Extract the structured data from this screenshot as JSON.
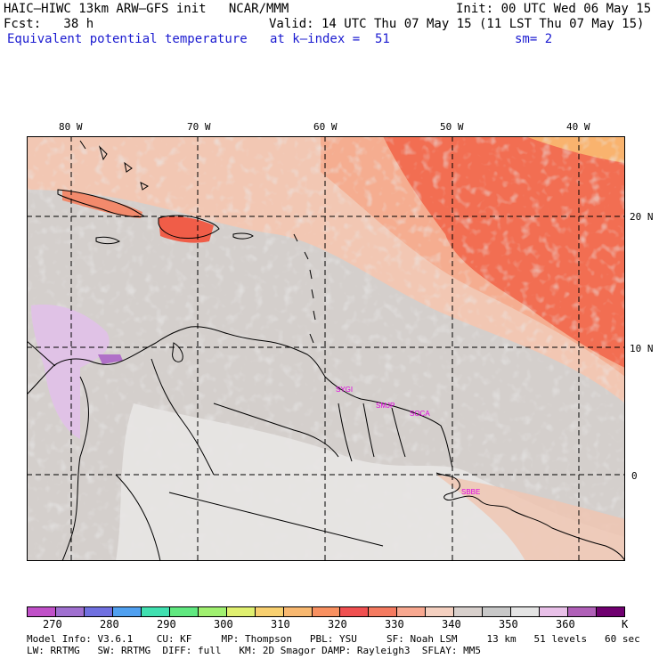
{
  "header": {
    "model_line": "HAIC–HIWC 13km ARW–GFS init   NCAR/MMM",
    "init_line": "Init: 00 UTC Wed 06 May 15",
    "fcst_line": "Fcst:   38 h",
    "valid_line": "Valid: 14 UTC Thu 07 May 15 (11 LST Thu 07 May 15)",
    "field_name": "Equivalent potential temperature",
    "level": "at k–index =  51",
    "smoothing": "sm= 2"
  },
  "map": {
    "longitude_labels": [
      "80 W",
      "70 W",
      "60 W",
      "50 W",
      "40 W"
    ],
    "latitude_labels": [
      "20 N",
      "10 N",
      "0"
    ],
    "stations": [
      "SYGI",
      "SMJP",
      "SOCA",
      "SBBE"
    ],
    "colors": {
      "background": "#cfcfcf",
      "warm_band": "#f5b89a",
      "hot": "#f26b50",
      "hottest": "#f59a6a",
      "light": "#e8e8e8",
      "lavender": "#e0bfe6",
      "purple": "#b070c8",
      "station_text": "#e000e0"
    }
  },
  "colorbar": {
    "labels": [
      "270",
      "280",
      "290",
      "300",
      "310",
      "320",
      "330",
      "340",
      "350",
      "360"
    ],
    "unit": "K",
    "colors": [
      "#c050c8",
      "#a070d0",
      "#7070e0",
      "#50a0f0",
      "#40e0b0",
      "#60e880",
      "#a0f070",
      "#e0f070",
      "#f8d070",
      "#f8b870",
      "#f89060",
      "#f05050",
      "#f47a60",
      "#f8a890",
      "#f4d0c0",
      "#d8d0cc",
      "#c8c8c8",
      "#e4e4e4",
      "#e8c0e8",
      "#b060b8",
      "#700070"
    ]
  },
  "footer": {
    "line1": "Model Info: V3.6.1    CU: KF     MP: Thompson   PBL: YSU     SF: Noah LSM     13 km   51 levels   60 sec",
    "line2": "LW: RRTMG   SW: RRTMG  DIFF: full   KM: 2D Smagor DAMP: Rayleigh3  SFLAY: MM5"
  }
}
